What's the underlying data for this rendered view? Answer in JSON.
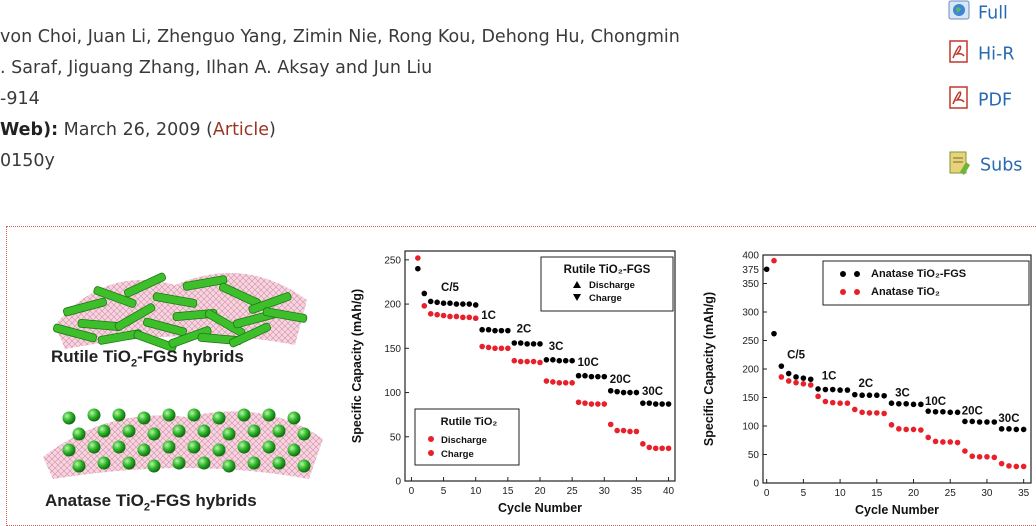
{
  "article": {
    "authors_line1": "von Choi, Juan Li, Zhenguo Yang, Zimin Nie, Rong Kou, Dehong Hu, Chongmin",
    "authors_line2": ". Saraf, Jiguang Zhang, Ilhan A. Aksay and Jun Liu",
    "pages": "-914",
    "published_label": "Web):",
    "published_date": "March 26, 2009",
    "paren_open": "(",
    "article_link": "Article",
    "paren_close": ")",
    "doi_fragment": "0150y"
  },
  "sidebar_links": [
    {
      "label": "Full",
      "icon": "globe-icon"
    },
    {
      "label": "Hi-R",
      "icon": "pdf-icon"
    },
    {
      "label": "PDF",
      "icon": "pdf-icon"
    },
    {
      "label": "Subs",
      "icon": "subscribe-icon"
    }
  ],
  "figure": {
    "rutile_label": "Rutile TiO",
    "rutile_sub": "2",
    "rutile_rest": "-FGS hybrids",
    "anatase_label": "Anatase TiO",
    "anatase_sub": "2",
    "anatase_rest": "-FGS hybrids"
  },
  "chart_data": [
    {
      "type": "scatter",
      "title": "",
      "xlabel": "Cycle Number",
      "ylabel": "Specific Capacity (mAh/g)",
      "xlim": [
        -1,
        41
      ],
      "ylim": [
        0,
        260
      ],
      "xticks": [
        0,
        5,
        10,
        15,
        20,
        25,
        30,
        35,
        40
      ],
      "yticks": [
        0,
        50,
        100,
        150,
        200,
        250
      ],
      "legend_top": {
        "title": "Rutile TiO₂-FGS",
        "entries": [
          "Discharge",
          "Charge"
        ],
        "color": "#000000"
      },
      "legend_bottom": {
        "title": "Rutile TiO₂",
        "entries": [
          "Discharge",
          "Charge"
        ],
        "color": "#e8202a"
      },
      "rate_labels": [
        {
          "text": "C/5",
          "x": 6,
          "y": 215
        },
        {
          "text": "1C",
          "x": 12,
          "y": 183
        },
        {
          "text": "2C",
          "x": 17.5,
          "y": 168
        },
        {
          "text": "3C",
          "x": 22.5,
          "y": 148
        },
        {
          "text": "10C",
          "x": 27.5,
          "y": 130
        },
        {
          "text": "20C",
          "x": 32.5,
          "y": 111
        },
        {
          "text": "30C",
          "x": 37.5,
          "y": 97
        }
      ],
      "series": [
        {
          "name": "Rutile TiO₂-FGS",
          "color": "#000000",
          "x": [
            1,
            2,
            3,
            4,
            5,
            6,
            7,
            8,
            9,
            10,
            11,
            12,
            13,
            14,
            15,
            16,
            17,
            18,
            19,
            20,
            21,
            22,
            23,
            24,
            25,
            26,
            27,
            28,
            29,
            30,
            31,
            32,
            33,
            34,
            35,
            36,
            37,
            38,
            39,
            40
          ],
          "y": [
            240,
            212,
            203,
            202,
            201,
            201,
            200,
            200,
            200,
            199,
            171,
            171,
            170,
            170,
            170,
            156,
            156,
            155,
            155,
            155,
            137,
            137,
            136,
            136,
            136,
            119,
            119,
            118,
            118,
            118,
            102,
            101,
            100,
            100,
            100,
            88,
            88,
            87,
            87,
            87
          ]
        },
        {
          "name": "Rutile TiO₂",
          "color": "#e8202a",
          "x": [
            1,
            2,
            3,
            4,
            5,
            6,
            7,
            8,
            9,
            10,
            11,
            12,
            13,
            14,
            15,
            16,
            17,
            18,
            19,
            20,
            21,
            22,
            23,
            24,
            25,
            26,
            27,
            28,
            29,
            30,
            31,
            32,
            33,
            34,
            35,
            36,
            37,
            38,
            39,
            40
          ],
          "y": [
            252,
            198,
            189,
            188,
            187,
            186,
            186,
            185,
            185,
            184,
            152,
            151,
            150,
            150,
            150,
            136,
            135,
            135,
            135,
            134,
            113,
            112,
            111,
            111,
            111,
            89,
            88,
            87,
            87,
            87,
            64,
            57,
            57,
            56,
            56,
            42,
            38,
            37,
            37,
            37
          ]
        }
      ]
    },
    {
      "type": "scatter",
      "title": "",
      "xlabel": "Cycle Number",
      "ylabel": "Specific Capacity (mAh/g)",
      "xlim": [
        -0.5,
        36
      ],
      "ylim": [
        0,
        400
      ],
      "xticks": [
        0,
        5,
        10,
        15,
        20,
        25,
        30,
        35
      ],
      "yticks": [
        0,
        50,
        100,
        150,
        200,
        250,
        300,
        350,
        375,
        400
      ],
      "rate_labels": [
        {
          "text": "C/5",
          "x": 4,
          "y": 218
        },
        {
          "text": "1C",
          "x": 8.5,
          "y": 182
        },
        {
          "text": "2C",
          "x": 13.5,
          "y": 168
        },
        {
          "text": "3C",
          "x": 18.5,
          "y": 152
        },
        {
          "text": "10C",
          "x": 23,
          "y": 137
        },
        {
          "text": "20C",
          "x": 28,
          "y": 120
        },
        {
          "text": "30C",
          "x": 33,
          "y": 107
        }
      ],
      "series": [
        {
          "name": "Anatase TiO₂-FGS",
          "color": "#000000",
          "x": [
            0,
            1,
            2,
            3,
            4,
            5,
            6,
            7,
            8,
            9,
            10,
            11,
            12,
            13,
            14,
            15,
            16,
            17,
            18,
            19,
            20,
            21,
            22,
            23,
            24,
            25,
            26,
            27,
            28,
            29,
            30,
            31,
            32,
            33,
            34,
            35
          ],
          "y": [
            375,
            262,
            205,
            192,
            186,
            184,
            182,
            165,
            164,
            164,
            163,
            163,
            155,
            154,
            154,
            154,
            153,
            140,
            139,
            139,
            138,
            138,
            126,
            125,
            125,
            124,
            124,
            108,
            108,
            107,
            107,
            107,
            95,
            95,
            94,
            94
          ]
        },
        {
          "name": "Anatase TiO₂",
          "color": "#e8202a",
          "x": [
            1,
            2,
            3,
            4,
            5,
            6,
            7,
            8,
            9,
            10,
            11,
            12,
            13,
            14,
            15,
            16,
            17,
            18,
            19,
            20,
            21,
            22,
            23,
            24,
            25,
            26,
            27,
            28,
            29,
            30,
            31,
            32,
            33,
            34,
            35
          ],
          "y": [
            390,
            186,
            179,
            176,
            174,
            172,
            152,
            143,
            141,
            140,
            140,
            129,
            124,
            123,
            123,
            122,
            102,
            95,
            94,
            94,
            93,
            80,
            73,
            72,
            72,
            71,
            56,
            47,
            46,
            46,
            45,
            34,
            30,
            29,
            29
          ]
        }
      ]
    }
  ]
}
